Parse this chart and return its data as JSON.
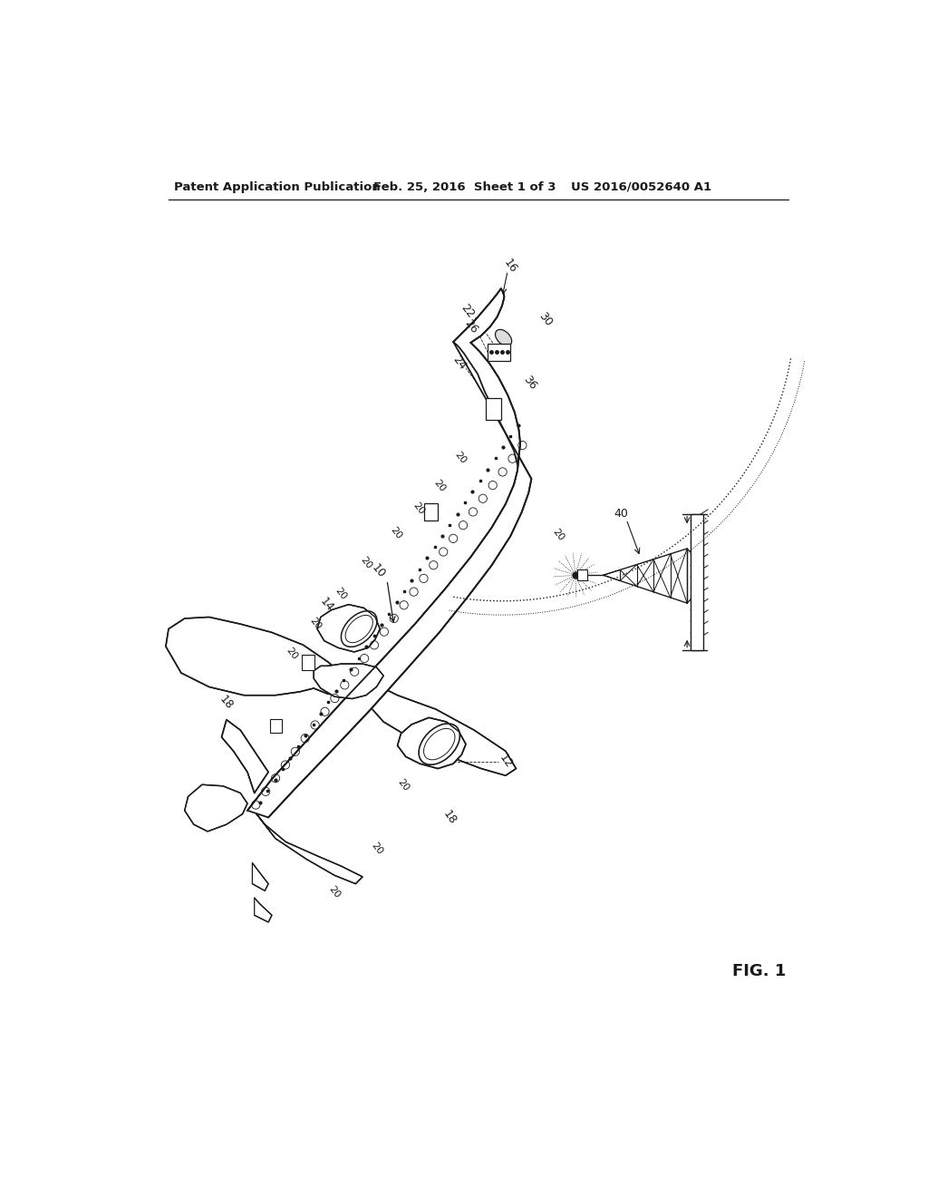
{
  "bg_color": "#ffffff",
  "header_left": "Patent Application Publication",
  "header_mid": "Feb. 25, 2016  Sheet 1 of 3",
  "header_right": "US 2016/0052640 A1",
  "fig_label": "FIG. 1",
  "line_color": "#1a1a1a",
  "text_color": "#1a1a1a",
  "header_fontsize": 9.5,
  "fig_fontsize": 13,
  "ref_fontsize": 9
}
